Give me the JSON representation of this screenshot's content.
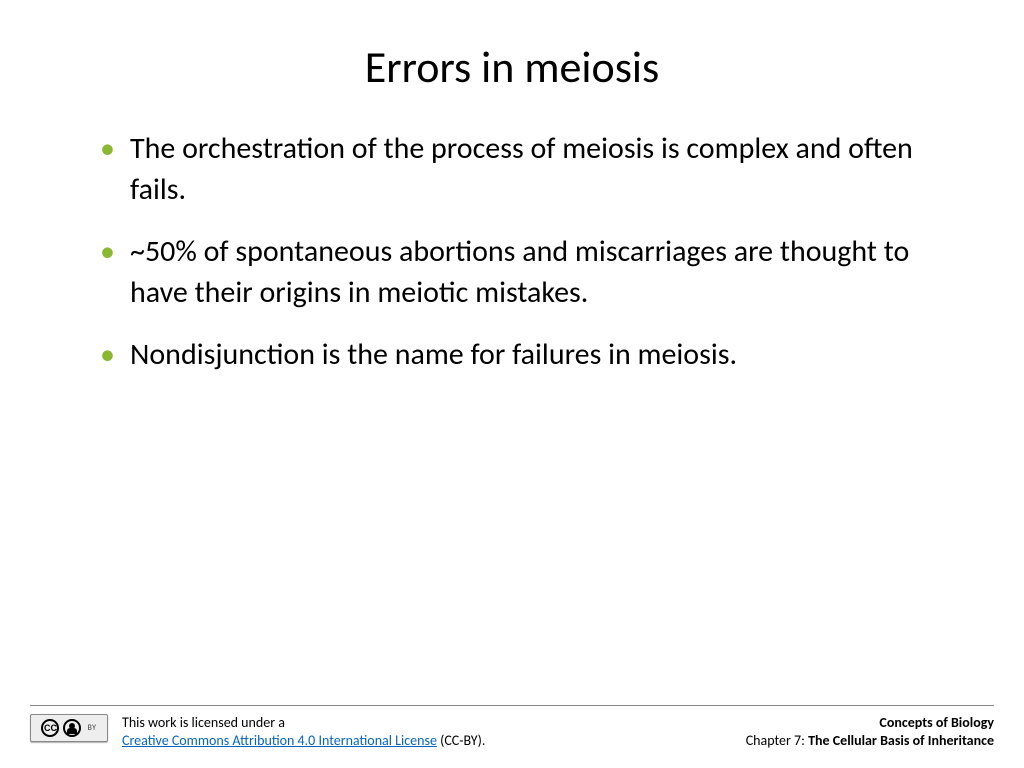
{
  "title": "Errors in meiosis",
  "bullets": [
    "The orchestration of the process of meiosis is complex and often fails.",
    "~50% of spontaneous abortions and miscarriages are thought to have their origins in meiotic mistakes.",
    "Nondisjunction is the name for failures in meiosis."
  ],
  "footer": {
    "license_intro": "This work is licensed under a",
    "license_link_text": "Creative Commons Attribution 4.0 International License",
    "license_suffix": " (CC-BY).",
    "book_title": "Concepts of Biology",
    "chapter_label": "Chapter 7: ",
    "chapter_title": "The Cellular Basis of Inheritance"
  },
  "colors": {
    "bullet_marker": "#8ab833",
    "link": "#0563c1",
    "text": "#000000",
    "background": "#ffffff",
    "hr": "#888888"
  },
  "typography": {
    "title_fontsize": 44,
    "body_fontsize": 30,
    "footer_fontsize": 14
  }
}
